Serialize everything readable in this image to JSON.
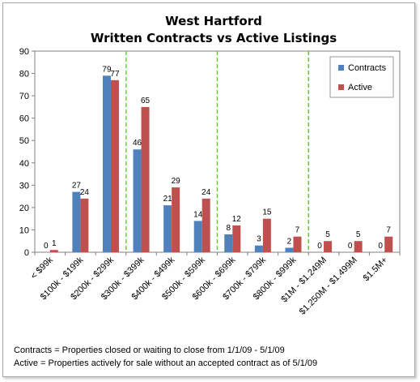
{
  "chart_data": {
    "type": "bar",
    "title": [
      "West Hartford",
      "Written Contracts vs Active Listings"
    ],
    "categories": [
      "< $99k",
      "$100k - $199k",
      "$200k - $299k",
      "$300k - $399k",
      "$400k - $499k",
      "$500k - $599k",
      "$600k - $699k",
      "$700k - $799k",
      "$800k - $999k",
      "$1M - $1.249M",
      "$1.250M - $1.499M",
      "$1.5M+"
    ],
    "series": [
      {
        "name": "Contracts",
        "color": "#4f81bd",
        "values": [
          0,
          27,
          79,
          46,
          21,
          14,
          8,
          3,
          2,
          0,
          0,
          0
        ]
      },
      {
        "name": "Active",
        "color": "#c0504d",
        "values": [
          1,
          24,
          77,
          65,
          29,
          24,
          12,
          15,
          7,
          5,
          5,
          7
        ]
      }
    ],
    "ylim": [
      0,
      90
    ],
    "yticks": [
      0,
      10,
      20,
      30,
      40,
      50,
      60,
      70,
      80,
      90
    ],
    "legend_position": "top-right",
    "separator_lines_after_categories": [
      3,
      6,
      9
    ],
    "separator_color": "#66cc33"
  },
  "footnotes": {
    "contracts": "Contracts = Properties closed or waiting to close from 1/1/09 - 5/1/09",
    "active": "Active = Properties actively for sale without an accepted contract as of 5/1/09"
  }
}
